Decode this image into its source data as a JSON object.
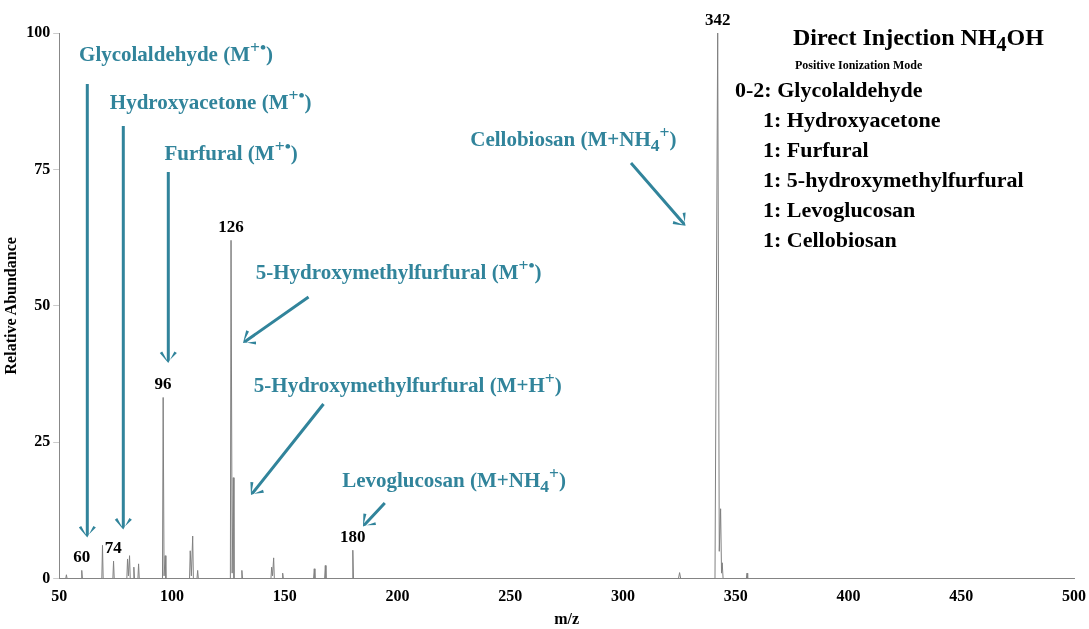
{
  "chart_data": {
    "type": "line",
    "title": "Direct Injection NH$_{4}$OH",
    "subtitle": "Positive Ionization Mode",
    "xlabel": "m/z",
    "ylabel": "Relative Abundance",
    "xlim": [
      50,
      500
    ],
    "xticks": [
      50,
      100,
      150,
      200,
      250,
      300,
      350,
      400,
      450,
      500
    ],
    "ylim": [
      0,
      100
    ],
    "yticks": [
      0,
      25,
      50,
      75,
      100
    ],
    "grid": false,
    "legend": false,
    "x": [
      50,
      52.9,
      53.2,
      53.5,
      59.7,
      60,
      60.3,
      68.9,
      69.2,
      69.5,
      73.8,
      74.1,
      74.4,
      80,
      80.3,
      80.7,
      81.2,
      81.5,
      82.8,
      83.1,
      83.4,
      84.9,
      85.2,
      85.5,
      95.8,
      96.1,
      96.5,
      97,
      97.3,
      107.8,
      108.1,
      108.6,
      109.2,
      109.5,
      111.1,
      111.4,
      111.7,
      125.9,
      126.2,
      126.7,
      127.2,
      127.5,
      130.7,
      131,
      131.3,
      143.9,
      144.2,
      144.6,
      145.1,
      145.4,
      148.8,
      149.1,
      149.4,
      162.8,
      163.1,
      163.4,
      167.7,
      168,
      168.3,
      179.9,
      180.2,
      180.5,
      324.6,
      325.1,
      325.6,
      340.8,
      342,
      342.7,
      343.3,
      343.7,
      344,
      344.4,
      354.7,
      355,
      355.3,
      500
    ],
    "series": [
      {
        "color": "#808080",
        "values": [
          0,
          0,
          0.7,
          0,
          0,
          1.5,
          0,
          0,
          6.1,
          0,
          0,
          3.2,
          0,
          0,
          3.6,
          0.5,
          4.2,
          0,
          0,
          2.1,
          0,
          0,
          2.7,
          0,
          0,
          33.2,
          0.5,
          4.2,
          0,
          0,
          5.1,
          0.5,
          7.8,
          0,
          0,
          1.5,
          0,
          0,
          62,
          1,
          18.5,
          0,
          0,
          1.5,
          0,
          0,
          2.1,
          0.5,
          3.8,
          0,
          0,
          1,
          0,
          0,
          1.8,
          0,
          0,
          2.4,
          0,
          0,
          5.2,
          0,
          0,
          1.1,
          0,
          0,
          100,
          5,
          12.8,
          1,
          2.9,
          0,
          0,
          1,
          0,
          0
        ]
      }
    ],
    "annotations": [
      "Glycolaldehyde (M$^{+•}$)",
      "Hydroxyacetone (M$^{+•}$)",
      "Furfural (M$^{+•}$)",
      "5-Hydroxymethylfurfural (M$^{+•}$)",
      "5-Hydroxymethylfurfural (M+H$^{+}$)",
      "Levoglucosan (M+NH$_{4}$$^{+}$)",
      "Cellobiosan (M+NH$_{4}$$^{+}$)",
      {
        "text": "60",
        "x": 60,
        "y": 1.5
      },
      {
        "text": "74",
        "x": 74,
        "y": 3.2
      },
      {
        "text": "96",
        "x": 96,
        "y": 33.2
      },
      {
        "text": "126",
        "x": 126.2,
        "y": 62
      },
      {
        "text": "180",
        "x": 180.2,
        "y": 5.2
      },
      {
        "text": "342",
        "x": 342,
        "y": 100
      },
      "0-2: Glycolaldehyde",
      "1: Hydroxyacetone",
      "1: Furfural",
      "1: 5-hydroxymethylfurfural",
      "1: Levoglucosan",
      "1: Cellobiosan"
    ]
  }
}
